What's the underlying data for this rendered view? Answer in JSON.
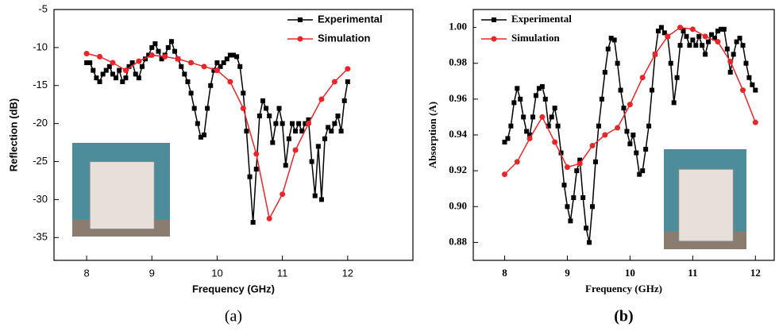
{
  "chart_data": [
    {
      "type": "line",
      "caption": "(a)",
      "x_label": "Frequency (GHz)",
      "y_label": "Reflection (dB)",
      "xlim": [
        7.5,
        13
      ],
      "xticks": [
        8,
        9,
        10,
        11,
        12
      ],
      "ylim": [
        -38,
        -5
      ],
      "yticks": [
        -5,
        -10,
        -15,
        -20,
        -25,
        -30,
        -35
      ],
      "legend": "upper right",
      "series": [
        {
          "name": "Experimental",
          "color": "#000000",
          "marker": "square",
          "x": [
            8.0,
            8.05,
            8.1,
            8.15,
            8.2,
            8.25,
            8.3,
            8.35,
            8.4,
            8.45,
            8.5,
            8.55,
            8.6,
            8.65,
            8.7,
            8.75,
            8.8,
            8.85,
            8.9,
            8.95,
            9.0,
            9.05,
            9.1,
            9.15,
            9.2,
            9.25,
            9.3,
            9.35,
            9.4,
            9.45,
            9.5,
            9.55,
            9.6,
            9.65,
            9.7,
            9.75,
            9.8,
            9.85,
            9.9,
            9.95,
            10.0,
            10.05,
            10.1,
            10.15,
            10.2,
            10.25,
            10.3,
            10.35,
            10.4,
            10.45,
            10.5,
            10.55,
            10.6,
            10.65,
            10.7,
            10.75,
            10.8,
            10.85,
            10.9,
            10.95,
            11.0,
            11.05,
            11.1,
            11.15,
            11.2,
            11.25,
            11.3,
            11.35,
            11.4,
            11.45,
            11.5,
            11.55,
            11.6,
            11.65,
            11.7,
            11.75,
            11.8,
            11.85,
            11.9,
            11.95,
            12.0
          ],
          "values": [
            -12,
            -12,
            -13,
            -14,
            -14.5,
            -13.5,
            -13,
            -12.5,
            -13.5,
            -14,
            -13,
            -14.5,
            -14,
            -12.5,
            -12,
            -13.5,
            -14,
            -12.5,
            -11.5,
            -11,
            -10,
            -9.5,
            -10.5,
            -11.5,
            -11,
            -10,
            -9.2,
            -10.5,
            -11.5,
            -12.5,
            -13.5,
            -14.5,
            -16,
            -18,
            -20,
            -21.8,
            -21.5,
            -18,
            -15,
            -13,
            -12,
            -12.5,
            -12,
            -11.5,
            -11,
            -11,
            -11.2,
            -12.5,
            -16,
            -21,
            -27,
            -33,
            -26,
            -19,
            -17,
            -18,
            -19,
            -22.5,
            -20,
            -18,
            -20,
            -25.5,
            -22,
            -20,
            -21,
            -20,
            -21,
            -20,
            -19.5,
            -25,
            -29.5,
            -23,
            -30,
            -22,
            -20.5,
            -21,
            -20,
            -19,
            -21,
            -17,
            -14.5
          ]
        },
        {
          "name": "Simulation",
          "color": "#e8262a",
          "marker": "circle",
          "x": [
            8.0,
            8.2,
            8.4,
            8.6,
            8.8,
            9.0,
            9.2,
            9.4,
            9.6,
            9.8,
            10.0,
            10.2,
            10.4,
            10.6,
            10.8,
            11.0,
            11.2,
            11.4,
            11.6,
            11.8,
            12.0
          ],
          "values": [
            -10.8,
            -11.2,
            -12,
            -13,
            -11.8,
            -11,
            -11.2,
            -11.5,
            -12,
            -12.5,
            -13,
            -14.5,
            -18,
            -24,
            -32.5,
            -29.3,
            -23.5,
            -20,
            -16.8,
            -14.5,
            -12.8
          ]
        }
      ]
    },
    {
      "type": "line",
      "caption": "(b)",
      "x_label": "Frequency (GHz)",
      "y_label": "Absorption (A)",
      "xlim": [
        7.5,
        12.3
      ],
      "xticks": [
        8,
        9,
        10,
        11,
        12
      ],
      "ylim": [
        0.87,
        1.01
      ],
      "yticks": [
        0.88,
        {
          "value": 0.9,
          "label": "0.90"
        },
        0.92,
        0.94,
        0.96,
        0.98,
        {
          "value": 1.0,
          "label": "1.00"
        }
      ],
      "legend": "upper left",
      "series": [
        {
          "name": "Experimental",
          "color": "#000000",
          "marker": "square",
          "x": [
            8.0,
            8.05,
            8.1,
            8.15,
            8.2,
            8.25,
            8.3,
            8.35,
            8.4,
            8.45,
            8.5,
            8.55,
            8.6,
            8.65,
            8.7,
            8.75,
            8.8,
            8.85,
            8.9,
            8.95,
            9.0,
            9.05,
            9.1,
            9.15,
            9.2,
            9.25,
            9.3,
            9.35,
            9.4,
            9.45,
            9.5,
            9.55,
            9.6,
            9.65,
            9.7,
            9.75,
            9.8,
            9.85,
            9.9,
            9.95,
            10.0,
            10.05,
            10.1,
            10.15,
            10.2,
            10.25,
            10.3,
            10.35,
            10.4,
            10.45,
            10.5,
            10.55,
            10.6,
            10.65,
            10.7,
            10.75,
            10.8,
            10.85,
            10.9,
            10.95,
            11.0,
            11.05,
            11.1,
            11.15,
            11.2,
            11.25,
            11.3,
            11.35,
            11.4,
            11.45,
            11.5,
            11.55,
            11.6,
            11.65,
            11.7,
            11.75,
            11.8,
            11.85,
            11.9,
            11.95,
            12.0
          ],
          "values": [
            0.936,
            0.938,
            0.945,
            0.958,
            0.966,
            0.96,
            0.95,
            0.942,
            0.94,
            0.95,
            0.962,
            0.966,
            0.967,
            0.96,
            0.945,
            0.95,
            0.955,
            0.945,
            0.93,
            0.912,
            0.9,
            0.892,
            0.905,
            0.92,
            0.926,
            0.905,
            0.888,
            0.88,
            0.9,
            0.925,
            0.945,
            0.96,
            0.975,
            0.988,
            0.994,
            0.993,
            0.98,
            0.965,
            0.955,
            0.942,
            0.935,
            0.94,
            0.93,
            0.918,
            0.92,
            0.932,
            0.945,
            0.965,
            0.985,
            0.998,
            1.0,
            0.997,
            0.995,
            0.98,
            0.958,
            0.972,
            0.99,
            0.998,
            0.995,
            0.99,
            0.993,
            0.99,
            0.995,
            0.99,
            0.985,
            0.992,
            0.996,
            0.994,
            0.998,
            0.999,
            0.999,
            0.988,
            0.975,
            0.985,
            0.992,
            0.994,
            0.99,
            0.98,
            0.972,
            0.968,
            0.965
          ]
        },
        {
          "name": "Simulation",
          "color": "#e8262a",
          "marker": "circle",
          "x": [
            8.0,
            8.2,
            8.4,
            8.6,
            8.8,
            9.0,
            9.2,
            9.4,
            9.6,
            9.8,
            10.0,
            10.2,
            10.4,
            10.6,
            10.8,
            11.0,
            11.2,
            11.4,
            11.6,
            11.8,
            12.0
          ],
          "values": [
            0.918,
            0.925,
            0.938,
            0.95,
            0.936,
            0.922,
            0.924,
            0.934,
            0.94,
            0.944,
            0.957,
            0.972,
            0.985,
            0.995,
            1.0,
            0.999,
            0.995,
            0.992,
            0.981,
            0.965,
            0.947
          ]
        }
      ]
    }
  ]
}
